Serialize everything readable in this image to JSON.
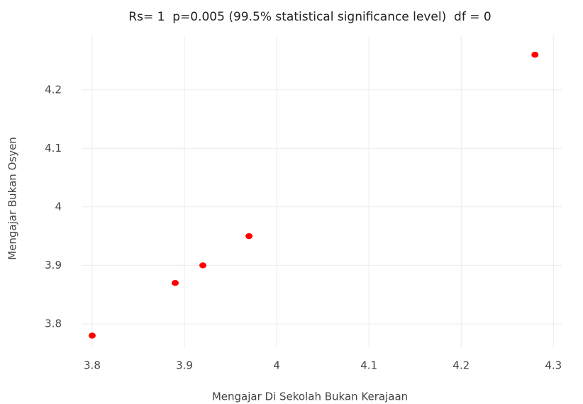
{
  "chart_data": {
    "type": "scatter",
    "title": "Rs= 1  p=0.005 (99.5% statistical significance level)  df = 0",
    "x_label": "Mengajar Di Sekolah Bukan Kerajaan",
    "y_label": "Mengajar Bukan Osyen",
    "x": [
      3.8,
      3.89,
      3.92,
      3.97,
      4.28
    ],
    "values": [
      3.78,
      3.87,
      3.9,
      3.95,
      4.26
    ],
    "color": "#ff0000",
    "xlim": [
      3.7885,
      4.309
    ],
    "ylim": [
      3.76,
      4.293
    ],
    "xticks": [
      3.8,
      3.9,
      4,
      4.1,
      4.2,
      4.3
    ],
    "yticks": [
      3.8,
      3.9,
      4,
      4.1,
      4.2
    ],
    "grid": true
  }
}
